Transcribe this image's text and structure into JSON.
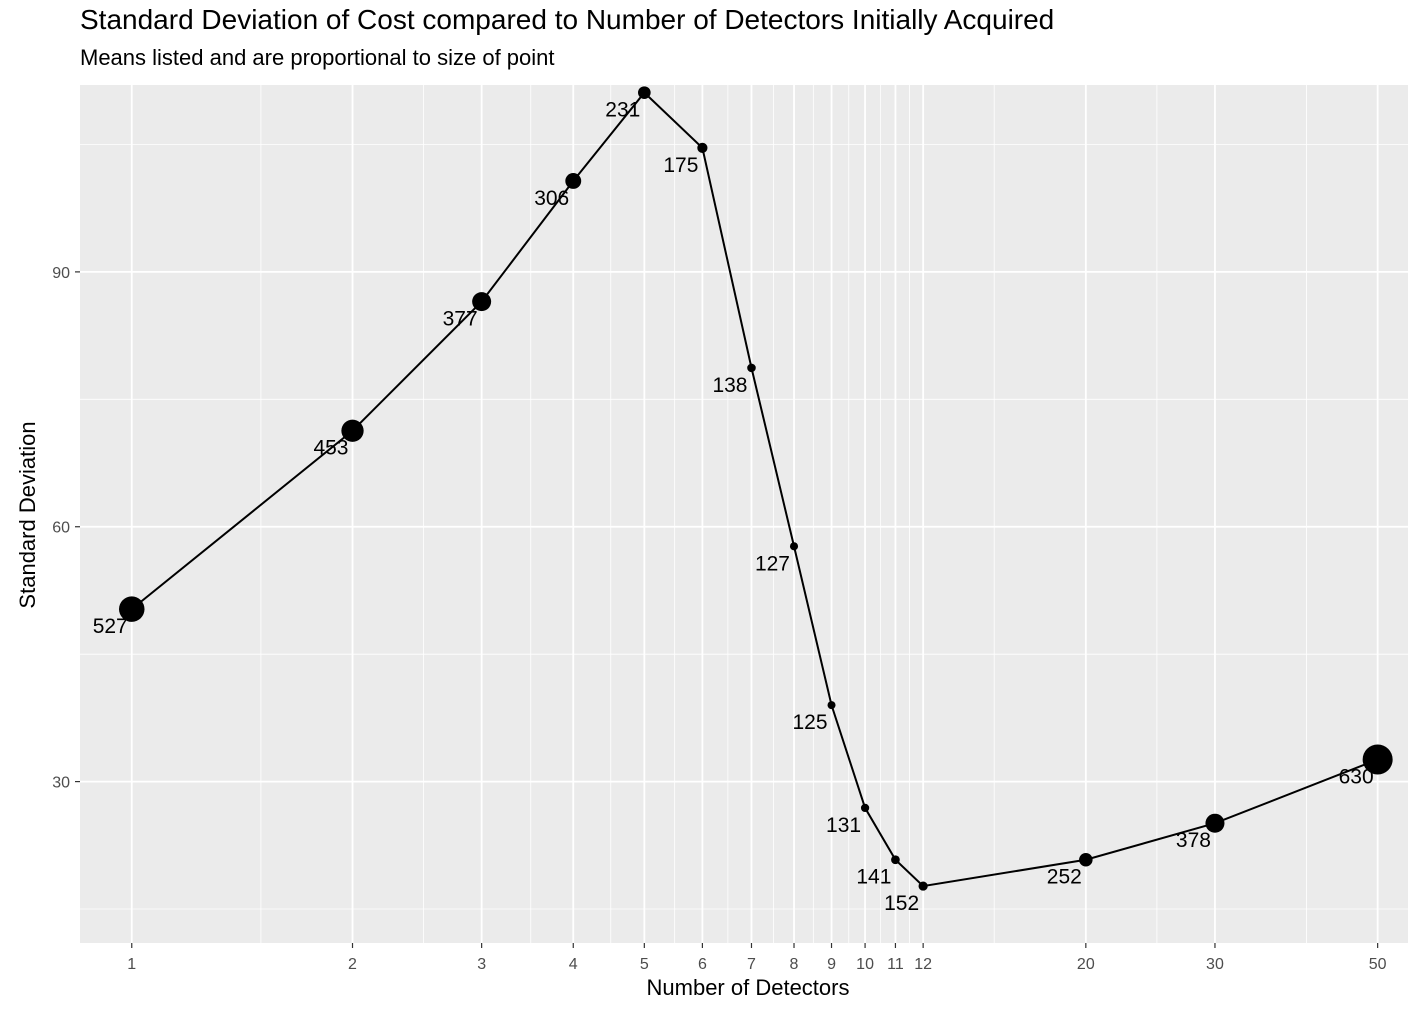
{
  "chart_data": {
    "type": "scatter",
    "title": "Standard Deviation of Cost compared to Number of Detectors Initially Acquired",
    "subtitle": "Means listed and are proportional to size of point",
    "xlabel": "Number of Detectors",
    "ylabel": "Standard Deviation",
    "x_scale": "log",
    "xlim": [
      0.85,
      55
    ],
    "ylim": [
      11,
      112
    ],
    "x_ticks": [
      1,
      2,
      3,
      4,
      5,
      6,
      7,
      8,
      9,
      10,
      11,
      12,
      20,
      30,
      50
    ],
    "y_ticks": [
      30,
      60,
      90
    ],
    "grid": true,
    "line_connected": true,
    "points": [
      {
        "x": 1,
        "y": 50.3,
        "mean": 527
      },
      {
        "x": 2,
        "y": 71.3,
        "mean": 453
      },
      {
        "x": 3,
        "y": 86.5,
        "mean": 377
      },
      {
        "x": 4,
        "y": 100.7,
        "mean": 306
      },
      {
        "x": 5,
        "y": 111.1,
        "mean": 231
      },
      {
        "x": 6,
        "y": 104.6,
        "mean": 175
      },
      {
        "x": 7,
        "y": 78.7,
        "mean": 138
      },
      {
        "x": 8,
        "y": 57.7,
        "mean": 127
      },
      {
        "x": 9,
        "y": 39.0,
        "mean": 125
      },
      {
        "x": 10,
        "y": 26.9,
        "mean": 131
      },
      {
        "x": 11,
        "y": 20.8,
        "mean": 141
      },
      {
        "x": 12,
        "y": 17.7,
        "mean": 152
      },
      {
        "x": 20,
        "y": 20.8,
        "mean": 252
      },
      {
        "x": 30,
        "y": 25.1,
        "mean": 378
      },
      {
        "x": 50,
        "y": 32.6,
        "mean": 630
      }
    ]
  }
}
